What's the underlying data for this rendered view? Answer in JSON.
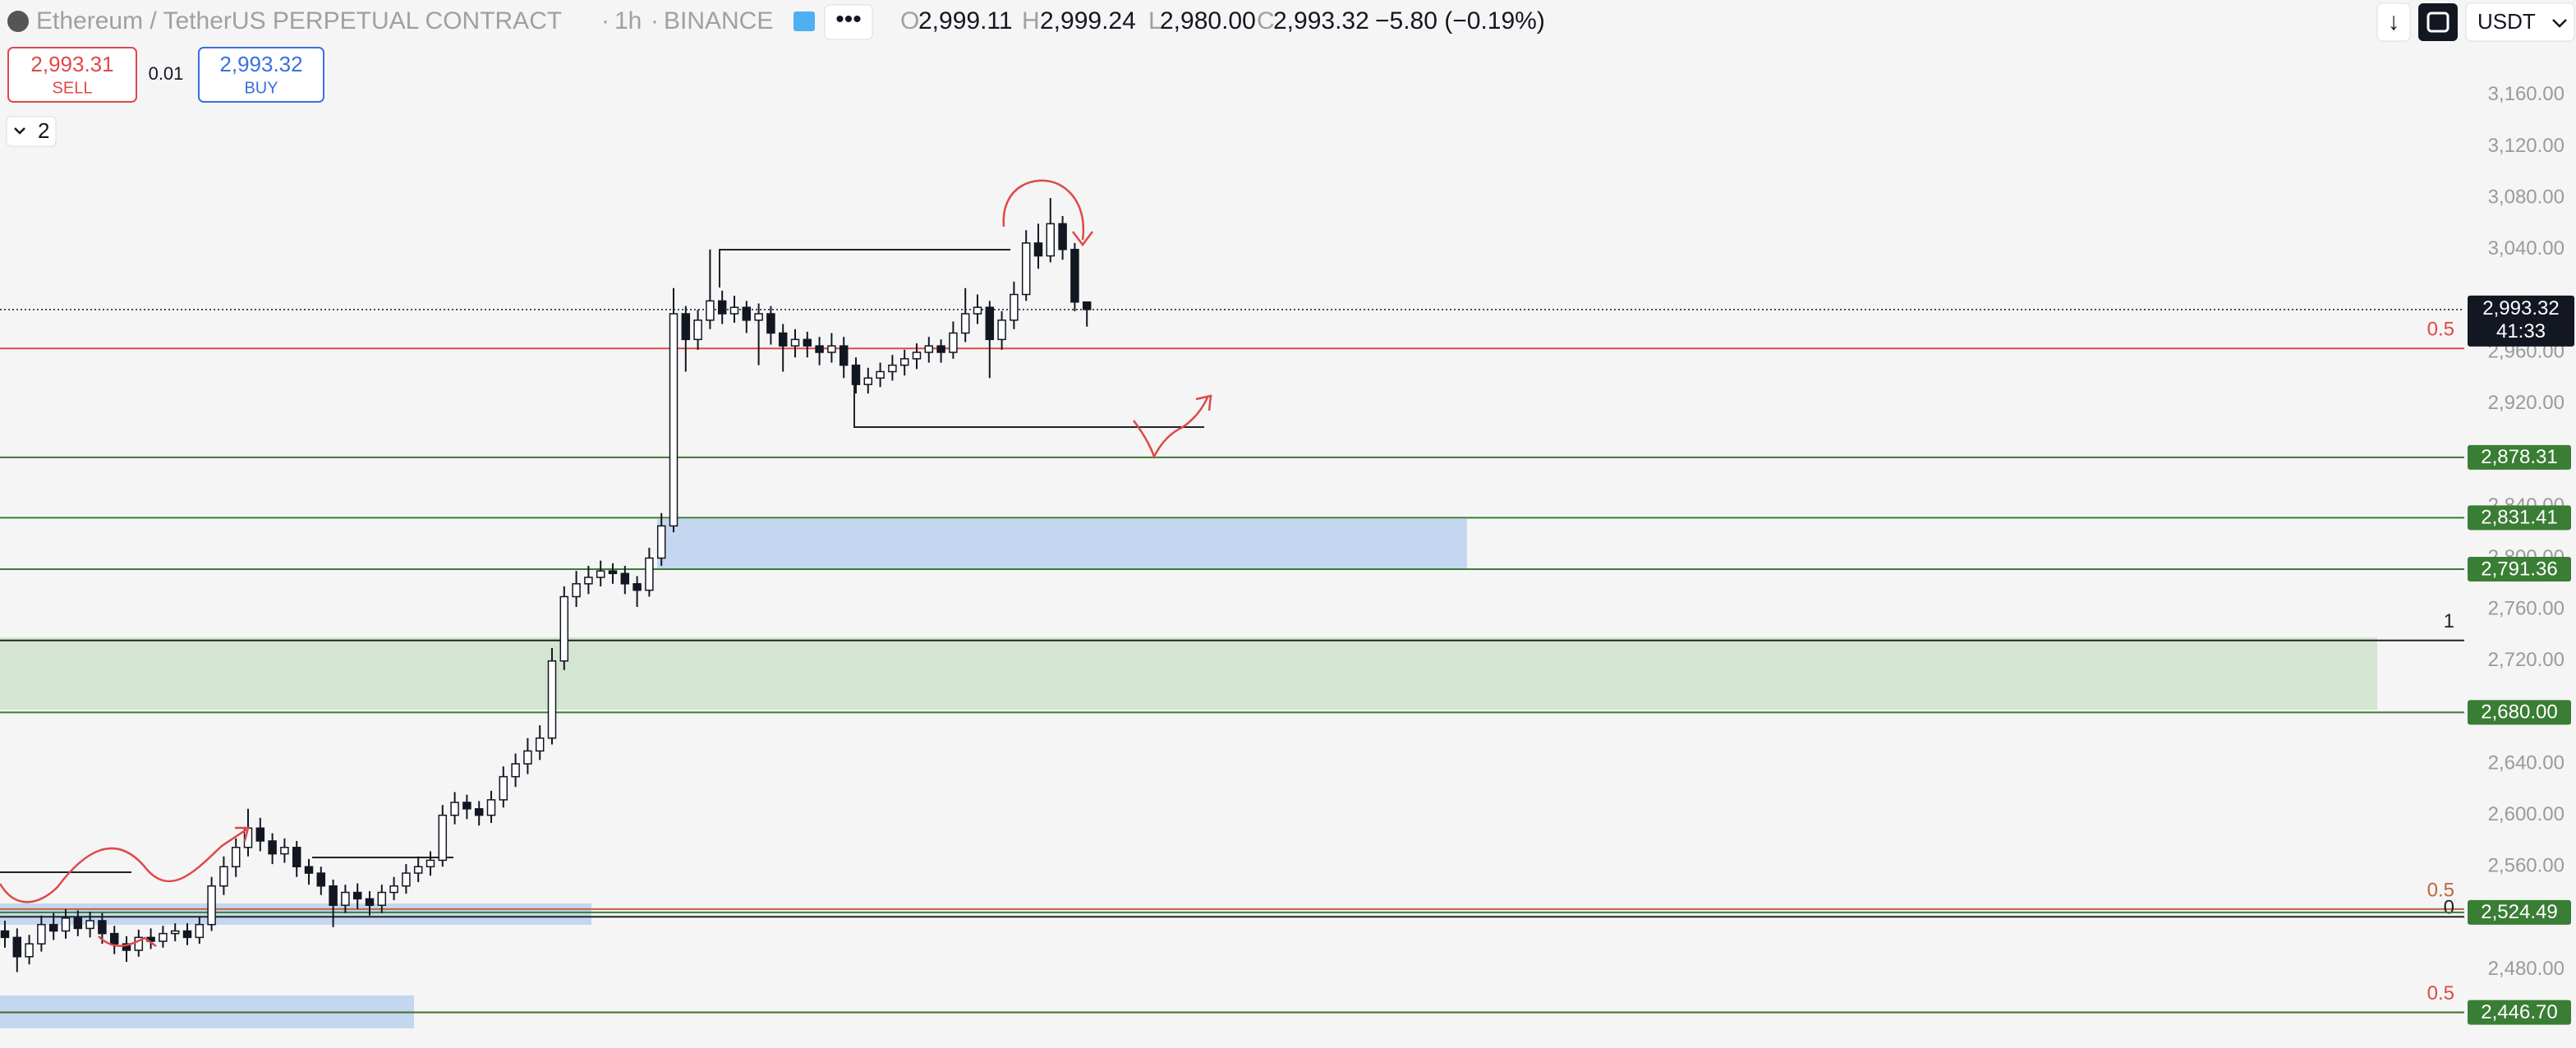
{
  "header": {
    "symbol": "Ethereum / TetherUS PERPETUAL CONTRACT",
    "interval": "1h",
    "exchange": "BINANCE",
    "ohlc": [
      {
        "key": "O",
        "value": "2,999.11"
      },
      {
        "key": "H",
        "value": "2,999.24"
      },
      {
        "key": "L",
        "value": "2,980.00"
      },
      {
        "key": "C",
        "value": "2,993.32"
      }
    ],
    "change": "−5.80 (−0.19%)",
    "currency": "USDT"
  },
  "order_panel": {
    "sell_price": "2,993.31",
    "sell": "SELL",
    "spread": "0.01",
    "buy_price": "2,993.32",
    "buy": "BUY",
    "collapse_count": "2"
  },
  "chart_data": {
    "type": "candlestick",
    "open": [
      2510,
      2505,
      2490,
      2500,
      2515,
      2510,
      2520,
      2512,
      2518,
      2508,
      2500,
      2495,
      2505,
      2502,
      2508,
      2510,
      2505,
      2515,
      2545,
      2560,
      2575,
      2590,
      2580,
      2570,
      2575,
      2560,
      2555,
      2545,
      2530,
      2540,
      2535,
      2530,
      2540,
      2545,
      2555,
      2560,
      2565,
      2600,
      2610,
      2605,
      2600,
      2612,
      2630,
      2640,
      2650,
      2660,
      2720,
      2770,
      2780,
      2785,
      2790,
      2788,
      2780,
      2775,
      2800,
      2825,
      2990,
      2970,
      2985,
      3000,
      2990,
      2995,
      2985,
      2990,
      2975,
      2965,
      2970,
      2965,
      2960,
      2965,
      2950,
      2935,
      2940,
      2945,
      2950,
      2955,
      2960,
      2965,
      2960,
      2975,
      2990,
      2995,
      2970,
      2985,
      3005,
      3045,
      3035,
      3060,
      3040,
      2999.11
    ],
    "high": [
      2518,
      2512,
      2507,
      2522,
      2524,
      2527,
      2526,
      2525,
      2524,
      2514,
      2506,
      2511,
      2512,
      2514,
      2516,
      2516,
      2521,
      2552,
      2568,
      2582,
      2605,
      2598,
      2586,
      2582,
      2580,
      2566,
      2560,
      2550,
      2546,
      2547,
      2541,
      2546,
      2552,
      2562,
      2568,
      2572,
      2608,
      2618,
      2616,
      2611,
      2619,
      2638,
      2648,
      2660,
      2670,
      2730,
      2778,
      2790,
      2794,
      2798,
      2796,
      2794,
      2786,
      2808,
      2835,
      3010,
      2996,
      2993,
      3040,
      3008,
      3004,
      3000,
      2998,
      2996,
      2982,
      2978,
      2976,
      2972,
      2975,
      2972,
      2956,
      2948,
      2952,
      2958,
      2962,
      2967,
      2972,
      2970,
      2984,
      3010,
      3005,
      3000,
      2992,
      3015,
      3055,
      3060,
      3080,
      3066,
      3045,
      2999.24
    ],
    "low": [
      2497,
      2478,
      2484,
      2494,
      2503,
      2504,
      2506,
      2505,
      2500,
      2492,
      2486,
      2490,
      2496,
      2497,
      2502,
      2499,
      2500,
      2510,
      2538,
      2552,
      2568,
      2572,
      2562,
      2563,
      2552,
      2546,
      2538,
      2513,
      2524,
      2527,
      2522,
      2524,
      2534,
      2539,
      2548,
      2553,
      2560,
      2593,
      2597,
      2592,
      2594,
      2606,
      2622,
      2632,
      2643,
      2655,
      2713,
      2762,
      2772,
      2778,
      2780,
      2772,
      2762,
      2770,
      2794,
      2820,
      2945,
      2962,
      2978,
      2982,
      2983,
      2975,
      2950,
      2966,
      2945,
      2956,
      2956,
      2950,
      2952,
      2940,
      2928,
      2928,
      2933,
      2938,
      2942,
      2947,
      2952,
      2952,
      2955,
      2968,
      2982,
      2940,
      2962,
      2978,
      3000,
      3025,
      3030,
      3032,
      2992,
      2980
    ],
    "close": [
      2505,
      2490,
      2500,
      2515,
      2510,
      2520,
      2512,
      2518,
      2508,
      2500,
      2495,
      2505,
      2502,
      2508,
      2510,
      2505,
      2515,
      2545,
      2560,
      2575,
      2590,
      2580,
      2570,
      2575,
      2560,
      2555,
      2545,
      2530,
      2540,
      2535,
      2530,
      2540,
      2545,
      2555,
      2560,
      2565,
      2600,
      2610,
      2605,
      2600,
      2612,
      2630,
      2640,
      2650,
      2660,
      2720,
      2770,
      2780,
      2785,
      2790,
      2788,
      2780,
      2775,
      2800,
      2825,
      2990,
      2970,
      2985,
      3000,
      2990,
      2995,
      2985,
      2990,
      2975,
      2965,
      2970,
      2965,
      2960,
      2965,
      2950,
      2935,
      2940,
      2945,
      2950,
      2955,
      2960,
      2965,
      2960,
      2975,
      2990,
      2995,
      2970,
      2985,
      3005,
      3045,
      3035,
      3060,
      3040,
      2999.11,
      2993.32
    ],
    "ylim": [
      2419,
      3234
    ],
    "yticks": [
      {
        "value": 3160,
        "label": "3,160.00"
      },
      {
        "value": 3120,
        "label": "3,120.00"
      },
      {
        "value": 3080,
        "label": "3,080.00"
      },
      {
        "value": 3040,
        "label": "3,040.00"
      },
      {
        "value": 2960,
        "label": "2,960.00"
      },
      {
        "value": 2920,
        "label": "2,920.00"
      },
      {
        "value": 2840,
        "label": "2,840.00"
      },
      {
        "value": 2800,
        "label": "2,800.00"
      },
      {
        "value": 2760,
        "label": "2,760.00"
      },
      {
        "value": 2720,
        "label": "2,720.00"
      },
      {
        "value": 2640,
        "label": "2,640.00"
      },
      {
        "value": 2600,
        "label": "2,600.00"
      },
      {
        "value": 2560,
        "label": "2,560.00"
      },
      {
        "value": 2480,
        "label": "2,480.00"
      }
    ],
    "last_price": {
      "value": 2993.32,
      "label": "2,993.32"
    },
    "countdown": "41:33",
    "levels": [
      {
        "value": 2878.31,
        "label": "2,878.31"
      },
      {
        "value": 2831.41,
        "label": "2,831.41"
      },
      {
        "value": 2791.36,
        "label": "2,791.36"
      },
      {
        "value": 2680,
        "label": "2,680.00"
      },
      {
        "value": 2524.49,
        "label": "2,524.49"
      },
      {
        "value": 2446.7,
        "label": "2,446.70"
      }
    ],
    "fib_levels": [
      {
        "value": 2963,
        "label": "0.5",
        "color": "#e04848"
      },
      {
        "value": 2736,
        "label": "1",
        "color": "#222222"
      },
      {
        "value": 2527,
        "label": "0.5",
        "color": "#c0643a"
      },
      {
        "value": 2521,
        "label": "0",
        "color": "#222222"
      },
      {
        "value": 2446.7,
        "label": "0.5",
        "color": "#e04848"
      }
    ],
    "level_color": "#3a7d34"
  }
}
